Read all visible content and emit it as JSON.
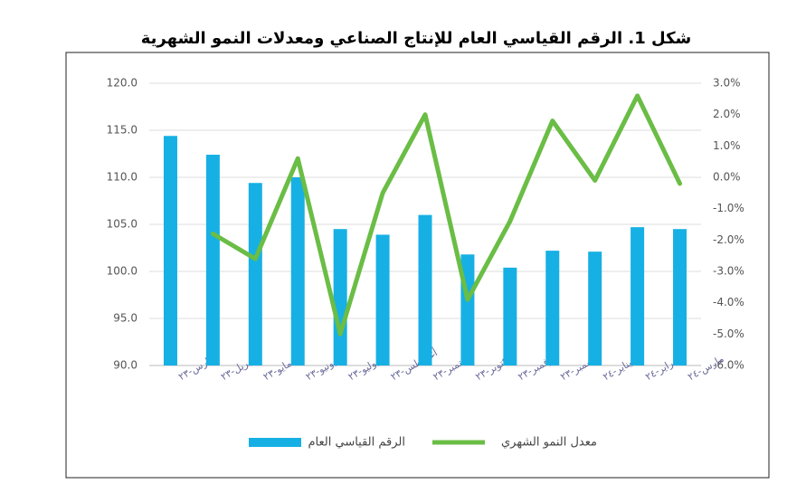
{
  "chart_data": {
    "type": "bar-line",
    "title": "شكل 1. الرقم القياسي العام للإنتاج الصناعي ومعدلات النمو الشهرية",
    "categories": [
      "مارس-٢٣",
      "ابريل-٢٣",
      "مايو-٢٣",
      "يونيو-٢٣",
      "يوليو-٢٣",
      "أغسطس-٢٣",
      "سبتمبر-٢٣",
      "أكتوبر-٢٣",
      "نوفمبر-٢٣",
      "ديسمبر-٢٣",
      "يناير-٢٤",
      "فبراير-٢٤",
      "مارس-٢٤"
    ],
    "series": [
      {
        "name": "الرقم القياسي العام",
        "type": "bar",
        "color": "#16b0e4",
        "values": [
          114.4,
          112.4,
          109.4,
          110.0,
          104.5,
          103.9,
          106.0,
          101.8,
          100.4,
          102.2,
          102.1,
          104.7,
          104.5
        ]
      },
      {
        "name": "معدل النمو الشهري",
        "type": "line",
        "axis": "y2",
        "color": "#6abd45",
        "values": [
          null,
          -1.8,
          -2.6,
          0.6,
          -5.0,
          -0.5,
          2.0,
          -3.9,
          -1.4,
          1.8,
          -0.1,
          2.6,
          -0.2
        ]
      }
    ],
    "ylim": [
      90,
      120
    ],
    "yticks": [
      {
        "value": 90,
        "label": "90.0"
      },
      {
        "value": 95,
        "label": "95.0"
      },
      {
        "value": 100,
        "label": "100.0"
      },
      {
        "value": 105,
        "label": "105.0"
      },
      {
        "value": 110,
        "label": "110.0"
      },
      {
        "value": 115,
        "label": "115.0"
      },
      {
        "value": 120,
        "label": "120.0"
      }
    ],
    "y2lim": [
      -6,
      3
    ],
    "y2ticks": [
      {
        "value": -6,
        "label": "-6.0%"
      },
      {
        "value": -5,
        "label": "-5.0%"
      },
      {
        "value": -4,
        "label": "-4.0%"
      },
      {
        "value": -3,
        "label": "-3.0%"
      },
      {
        "value": -2,
        "label": "-2.0%"
      },
      {
        "value": -1,
        "label": "-1.0%"
      },
      {
        "value": 0,
        "label": "0.0%"
      },
      {
        "value": 1,
        "label": "1.0%"
      },
      {
        "value": 2,
        "label": "2.0%"
      },
      {
        "value": 3,
        "label": "3.0%"
      }
    ],
    "grid": true,
    "legend": "bottom"
  }
}
